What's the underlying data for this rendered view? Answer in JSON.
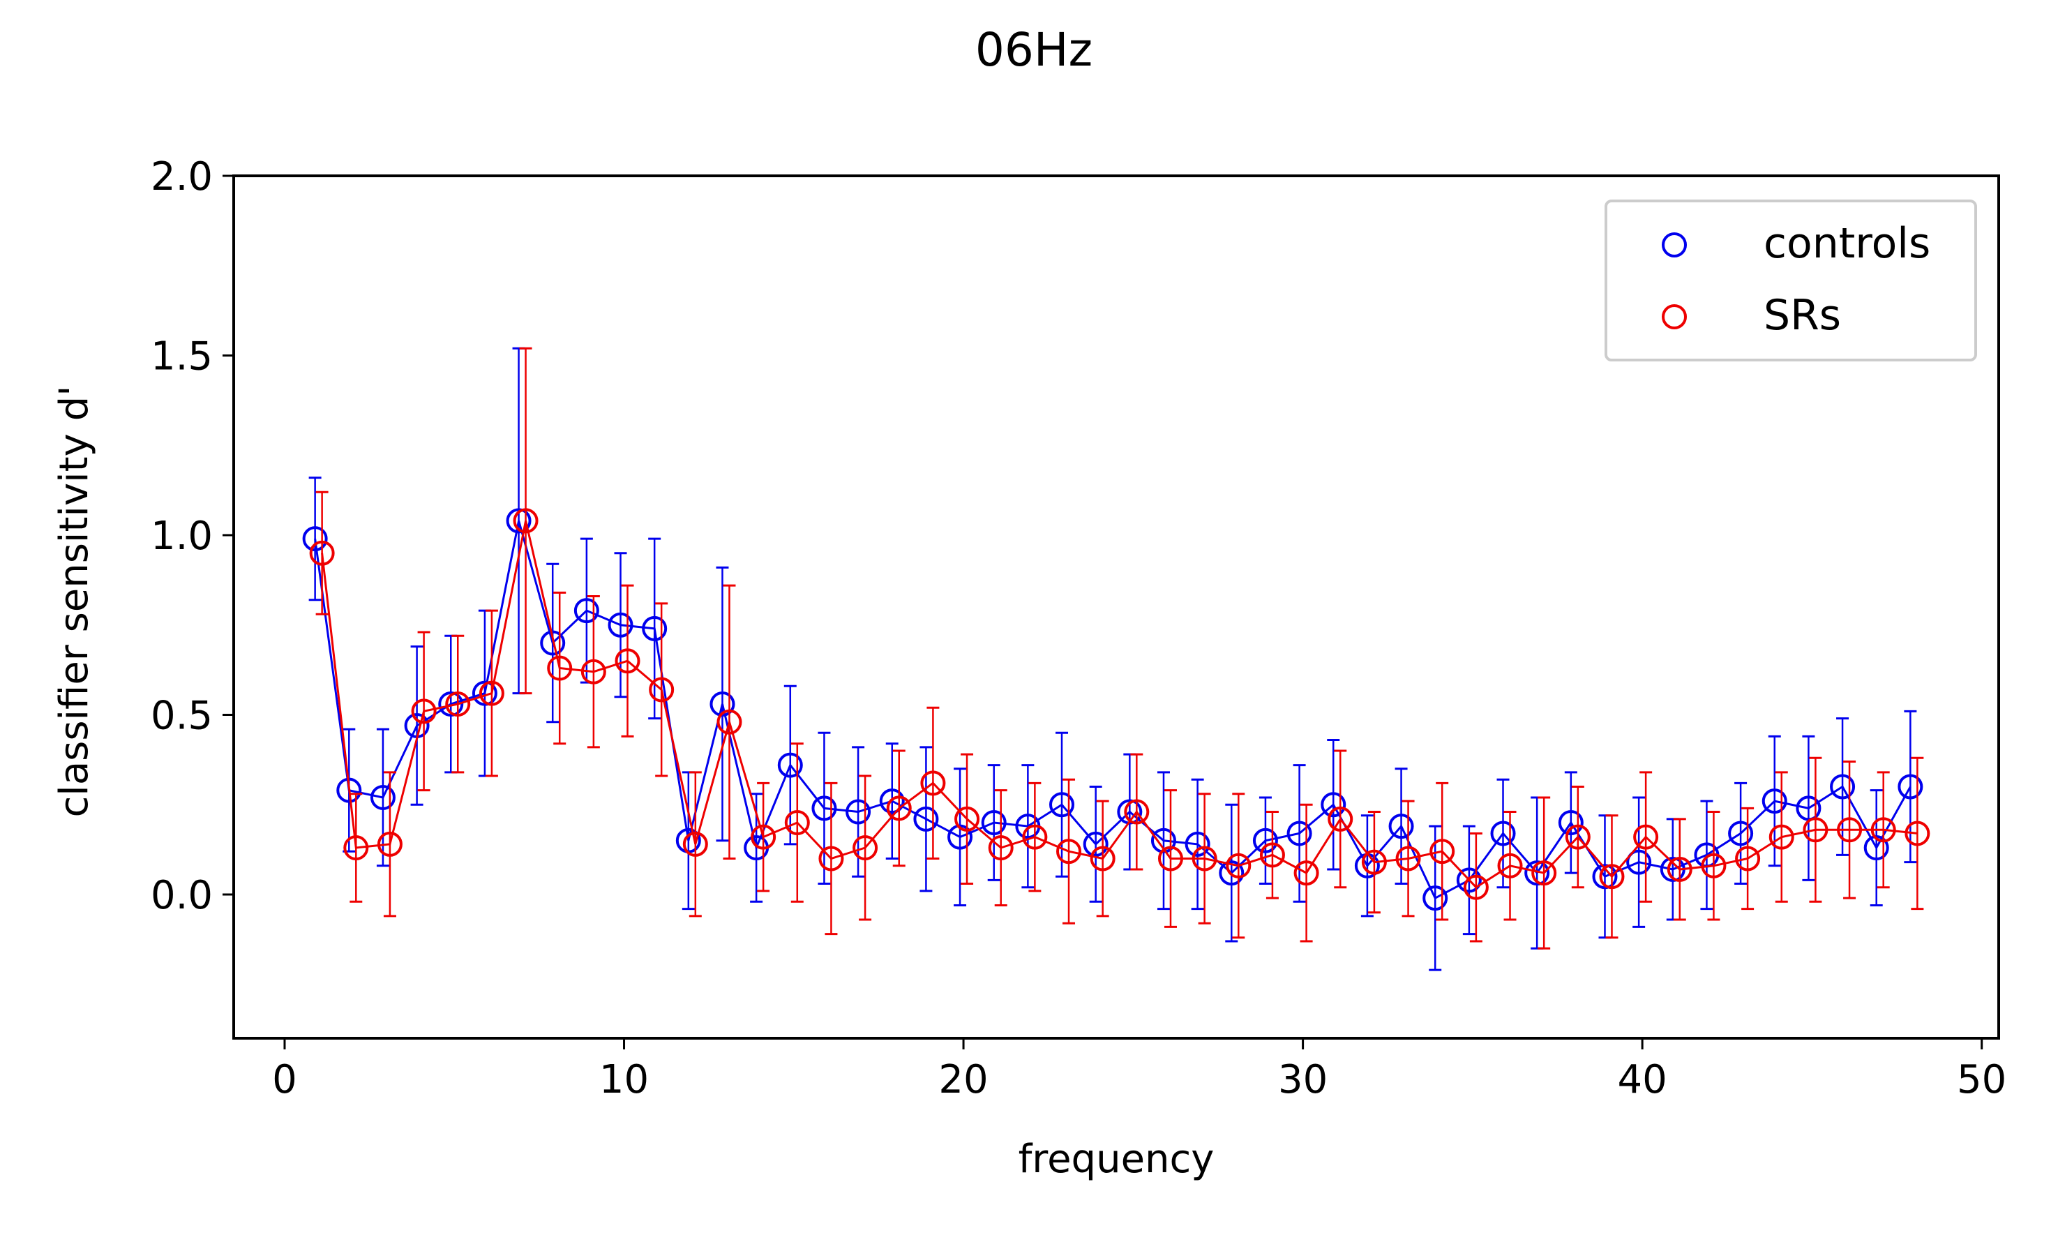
{
  "chart_data": {
    "type": "scatter",
    "title": "06Hz",
    "xlabel": "frequency",
    "ylabel": "classifier sensitivity d'",
    "xlim": [
      -1.5,
      50.5
    ],
    "ylim": [
      -0.4,
      2.0
    ],
    "xticks": [
      0,
      10,
      20,
      30,
      40,
      50
    ],
    "yticks": [
      0.0,
      0.5,
      1.0,
      1.5,
      2.0
    ],
    "xtick_labels": [
      "0",
      "10",
      "20",
      "30",
      "40",
      "50"
    ],
    "ytick_labels": [
      "0.0",
      "0.5",
      "1.0",
      "1.5",
      "2.0"
    ],
    "grid": false,
    "legend_position": "top-right",
    "series": [
      {
        "name": "controls",
        "color": "#0000ee",
        "x": [
          1,
          2,
          3,
          4,
          5,
          6,
          7,
          8,
          9,
          10,
          11,
          12,
          13,
          14,
          15,
          16,
          17,
          18,
          19,
          20,
          21,
          22,
          23,
          24,
          25,
          26,
          27,
          28,
          29,
          30,
          31,
          32,
          33,
          34,
          35,
          36,
          37,
          38,
          39,
          40,
          41,
          42,
          43,
          44,
          45,
          46,
          47,
          48
        ],
        "y": [
          0.99,
          0.29,
          0.27,
          0.47,
          0.53,
          0.56,
          1.04,
          0.7,
          0.79,
          0.75,
          0.74,
          0.15,
          0.53,
          0.13,
          0.36,
          0.24,
          0.23,
          0.26,
          0.21,
          0.16,
          0.2,
          0.19,
          0.25,
          0.14,
          0.23,
          0.15,
          0.14,
          0.06,
          0.15,
          0.17,
          0.25,
          0.08,
          0.19,
          -0.01,
          0.04,
          0.17,
          0.06,
          0.2,
          0.05,
          0.09,
          0.07,
          0.11,
          0.17,
          0.26,
          0.24,
          0.3,
          0.13,
          0.3
        ],
        "err": [
          0.17,
          0.17,
          0.19,
          0.22,
          0.19,
          0.23,
          0.48,
          0.22,
          0.2,
          0.2,
          0.25,
          0.19,
          0.38,
          0.15,
          0.22,
          0.21,
          0.18,
          0.16,
          0.2,
          0.19,
          0.16,
          0.17,
          0.2,
          0.16,
          0.16,
          0.19,
          0.18,
          0.19,
          0.12,
          0.19,
          0.18,
          0.14,
          0.16,
          0.2,
          0.15,
          0.15,
          0.21,
          0.14,
          0.17,
          0.18,
          0.14,
          0.15,
          0.14,
          0.18,
          0.2,
          0.19,
          0.16,
          0.21
        ]
      },
      {
        "name": "SRs",
        "color": "#ee0000",
        "x": [
          1,
          2,
          3,
          4,
          5,
          6,
          7,
          8,
          9,
          10,
          11,
          12,
          13,
          14,
          15,
          16,
          17,
          18,
          19,
          20,
          21,
          22,
          23,
          24,
          25,
          26,
          27,
          28,
          29,
          30,
          31,
          32,
          33,
          34,
          35,
          36,
          37,
          38,
          39,
          40,
          41,
          42,
          43,
          44,
          45,
          46,
          47,
          48
        ],
        "y": [
          0.95,
          0.13,
          0.14,
          0.51,
          0.53,
          0.56,
          1.04,
          0.63,
          0.62,
          0.65,
          0.57,
          0.14,
          0.48,
          0.16,
          0.2,
          0.1,
          0.13,
          0.24,
          0.31,
          0.21,
          0.13,
          0.16,
          0.12,
          0.1,
          0.23,
          0.1,
          0.1,
          0.08,
          0.11,
          0.06,
          0.21,
          0.09,
          0.1,
          0.12,
          0.02,
          0.08,
          0.06,
          0.16,
          0.05,
          0.16,
          0.07,
          0.08,
          0.1,
          0.16,
          0.18,
          0.18,
          0.18,
          0.17
        ],
        "err": [
          0.17,
          0.15,
          0.2,
          0.22,
          0.19,
          0.23,
          0.48,
          0.21,
          0.21,
          0.21,
          0.24,
          0.2,
          0.38,
          0.15,
          0.22,
          0.21,
          0.2,
          0.16,
          0.21,
          0.18,
          0.16,
          0.15,
          0.2,
          0.16,
          0.16,
          0.19,
          0.18,
          0.2,
          0.12,
          0.19,
          0.19,
          0.14,
          0.16,
          0.19,
          0.15,
          0.15,
          0.21,
          0.14,
          0.17,
          0.18,
          0.14,
          0.15,
          0.14,
          0.18,
          0.2,
          0.19,
          0.16,
          0.21
        ]
      }
    ]
  }
}
